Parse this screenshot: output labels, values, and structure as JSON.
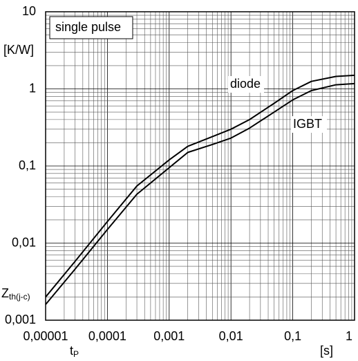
{
  "chart_data": {
    "type": "line",
    "log_x": true,
    "log_y": true,
    "grid": true,
    "minor_grid": true,
    "annotation": "single pulse",
    "y_unit": "[K/W]",
    "y_label": {
      "main": "Z",
      "sub": "th(j-c)"
    },
    "x_unit": "[s]",
    "x_label": {
      "main": "t",
      "sub": "P"
    },
    "xlim": [
      1e-05,
      1
    ],
    "xticks": [
      {
        "value": 1e-05,
        "label": "0,00001"
      },
      {
        "value": 0.0001,
        "label": "0,0001"
      },
      {
        "value": 0.001,
        "label": "0,001"
      },
      {
        "value": 0.01,
        "label": "0,01"
      },
      {
        "value": 0.1,
        "label": "0,1"
      },
      1
    ],
    "ylim": [
      0.001,
      10
    ],
    "yticks": [
      {
        "value": 0.001,
        "label": "0,001"
      },
      {
        "value": 0.01,
        "label": "0,01"
      },
      {
        "value": 0.1,
        "label": "0,1"
      },
      1,
      10
    ],
    "x": [
      1e-05,
      3e-05,
      0.0001,
      0.0003,
      0.001,
      0.002,
      0.005,
      0.01,
      0.02,
      0.05,
      0.1,
      0.2,
      0.5,
      1
    ],
    "series": [
      {
        "name": "diode",
        "color": "#000000",
        "values": [
          0.002,
          0.0058,
          0.019,
          0.055,
          0.12,
          0.18,
          0.24,
          0.3,
          0.4,
          0.65,
          0.95,
          1.25,
          1.45,
          1.5
        ]
      },
      {
        "name": "IGBT",
        "color": "#000000",
        "values": [
          0.0016,
          0.0046,
          0.015,
          0.043,
          0.095,
          0.15,
          0.19,
          0.23,
          0.31,
          0.5,
          0.72,
          0.95,
          1.13,
          1.17
        ]
      }
    ]
  }
}
